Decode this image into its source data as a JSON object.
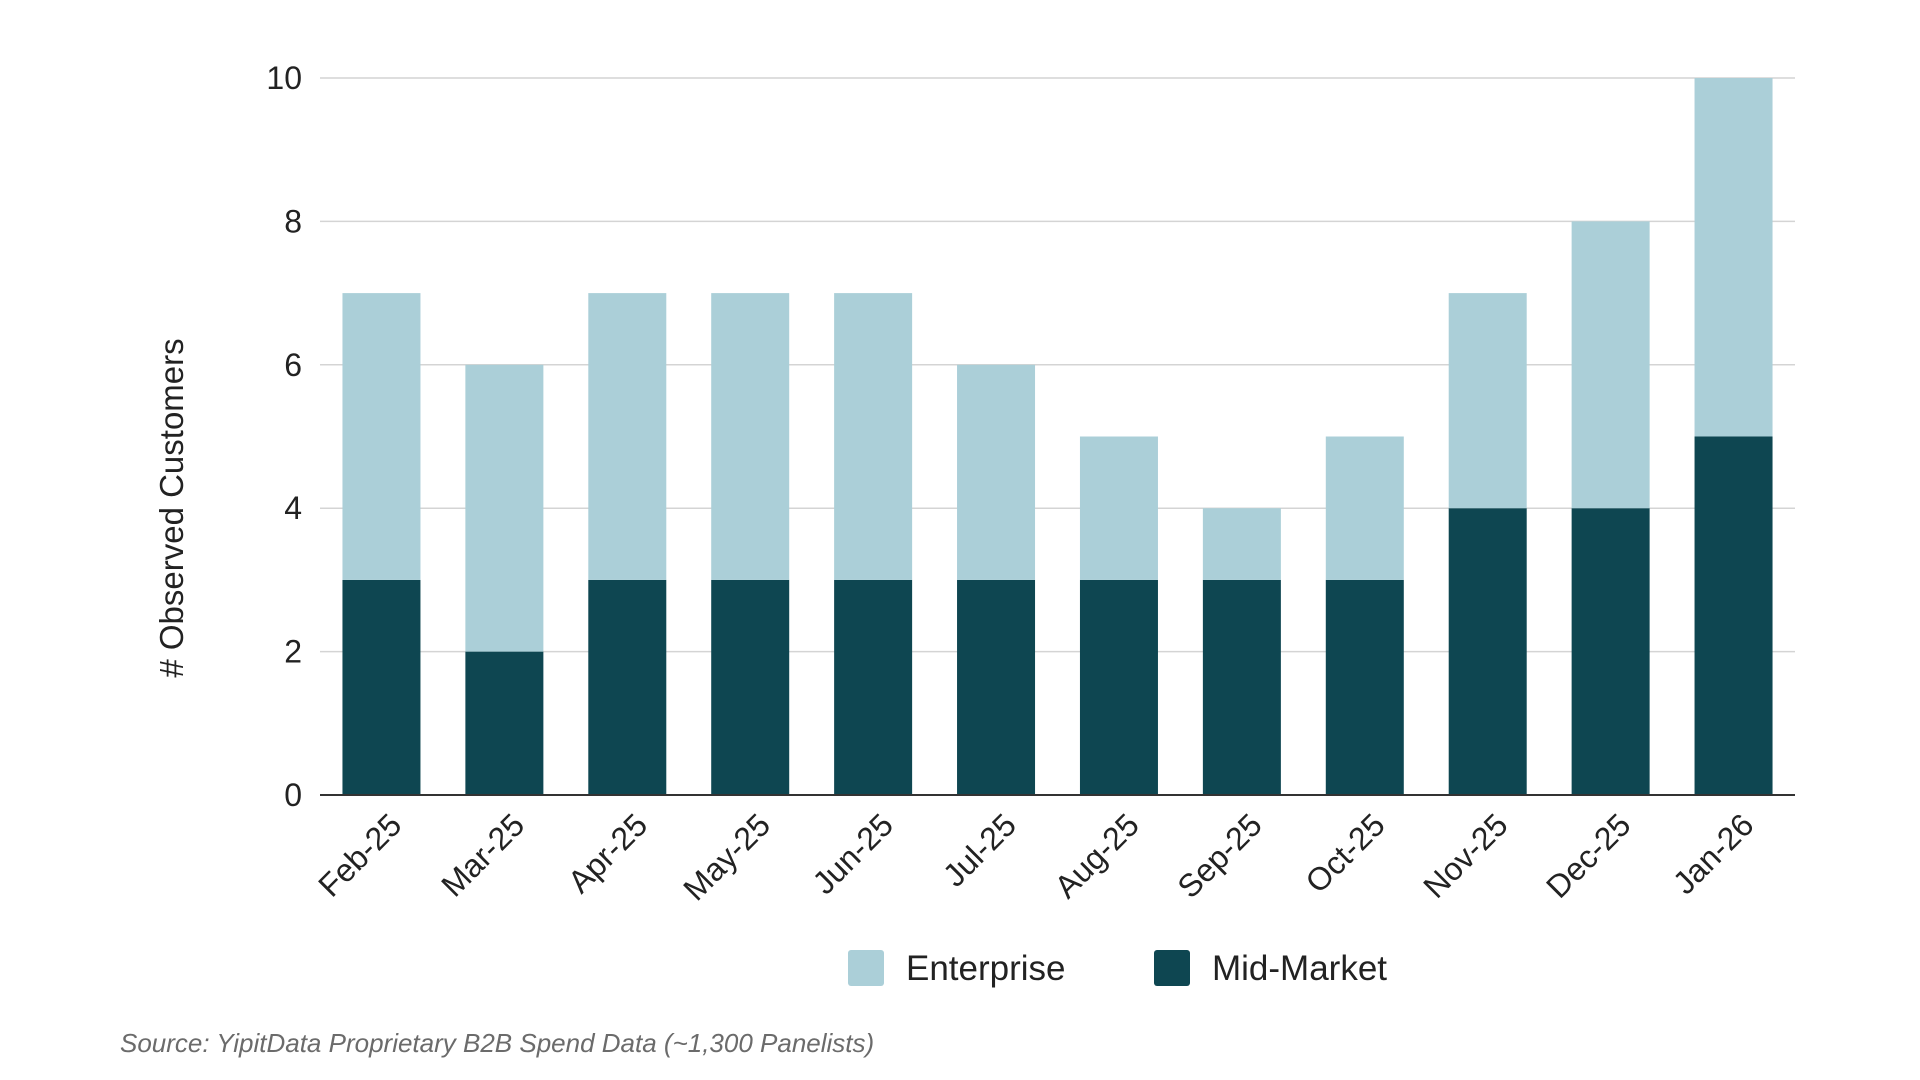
{
  "chart_data": {
    "type": "bar",
    "stacked": true,
    "title": "",
    "xlabel": "",
    "ylabel": "# Observed Customers",
    "ylim": [
      0,
      10
    ],
    "yticks": [
      0,
      2,
      4,
      6,
      8,
      10
    ],
    "grid": true,
    "legend_position": "bottom",
    "categories": [
      "Feb-25",
      "Mar-25",
      "Apr-25",
      "May-25",
      "Jun-25",
      "Jul-25",
      "Aug-25",
      "Sep-25",
      "Oct-25",
      "Nov-25",
      "Dec-25",
      "Jan-26"
    ],
    "series": [
      {
        "name": "Mid-Market",
        "color": "#0e4651",
        "values": [
          3,
          2,
          3,
          3,
          3,
          3,
          3,
          3,
          3,
          4,
          4,
          5
        ]
      },
      {
        "name": "Enterprise",
        "color": "#abcfd8",
        "values": [
          4,
          4,
          4,
          4,
          4,
          3,
          2,
          1,
          2,
          3,
          4,
          5
        ]
      }
    ],
    "legend_order": [
      "Enterprise",
      "Mid-Market"
    ]
  },
  "source_note": "Source: YipitData Proprietary B2B Spend Data (~1,300 Panelists)",
  "colors": {
    "grid": "#d4d4d4",
    "axis": "#333333"
  }
}
